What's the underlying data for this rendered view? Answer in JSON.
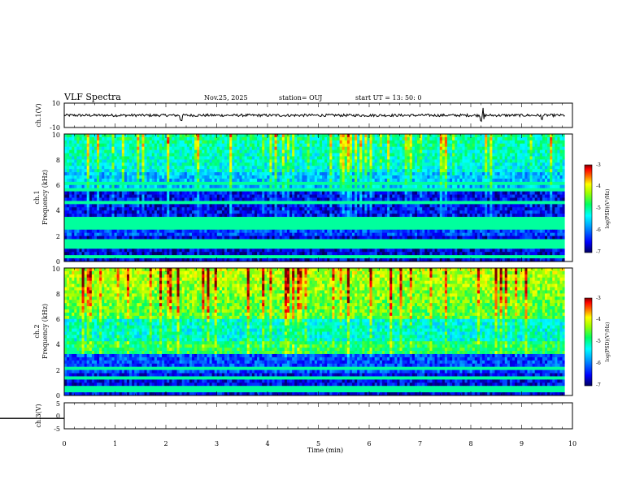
{
  "header": {
    "title": "VLF Spectra",
    "date": "Nov.25, 2025",
    "station": "station= OUJ",
    "start_ut": "start  UT =   13: 50: 0"
  },
  "colors": {
    "background": "#ffffff",
    "axis": "#000000",
    "colormap": [
      "#000080",
      "#0000ff",
      "#00a0ff",
      "#00ffff",
      "#00ff80",
      "#80ff00",
      "#ffff00",
      "#ff8000",
      "#ff0000",
      "#800000"
    ]
  },
  "chart_data": [
    {
      "type": "line",
      "name": "ch1-waveform",
      "ylabel": "ch.1(V)",
      "ylim": [
        -10,
        10
      ],
      "yticks": [
        "10",
        "-10"
      ],
      "baseline": 0,
      "spikes_min": [
        2.3,
        8.2,
        8.25,
        9.4
      ],
      "xlim": [
        0,
        10
      ]
    },
    {
      "type": "heatmap",
      "name": "ch1-spectrogram",
      "ylabel_line1": "ch.1",
      "ylabel_line2": "Frequency (kHz)",
      "ylim": [
        0,
        10
      ],
      "yticks": [
        "0",
        "2",
        "4",
        "6",
        "8",
        "10"
      ],
      "xlim": [
        0,
        10
      ],
      "data_end_min": 9.85,
      "colorbar": {
        "label": "log(PSD)(V²/Hz)",
        "range": [
          -7,
          -3
        ],
        "ticks": [
          "-3",
          "-4",
          "-5",
          "-6",
          "-7"
        ]
      },
      "bands_khz": [
        0.3,
        1.2,
        1.5,
        2.6,
        3.0,
        3.4,
        4.6,
        5.6,
        6.1
      ]
    },
    {
      "type": "heatmap",
      "name": "ch2-spectrogram",
      "ylabel_line1": "ch.2",
      "ylabel_line2": "Frequency (kHz)",
      "ylim": [
        0,
        10
      ],
      "yticks": [
        "0",
        "2",
        "4",
        "6",
        "8",
        "10"
      ],
      "xlim": [
        0,
        10
      ],
      "data_end_min": 9.85,
      "colorbar": {
        "label": "log(PSD)(V²/Hz)",
        "range": [
          -7,
          -3
        ],
        "ticks": [
          "-3",
          "-4",
          "-5",
          "-6",
          "-7"
        ]
      },
      "bands_khz": [
        0.5,
        1.4,
        2.2,
        3.4,
        3.6,
        4.1
      ]
    },
    {
      "type": "line",
      "name": "ch3-waveform",
      "ylabel": "ch.3(V)",
      "ylim": [
        -5,
        5
      ],
      "yticks": [
        "5",
        "0",
        "-5"
      ],
      "baseline": -1,
      "xlim": [
        0,
        10
      ],
      "xlabel": "Time (min)",
      "xticks": [
        "0",
        "1",
        "2",
        "3",
        "4",
        "5",
        "6",
        "7",
        "8",
        "9",
        "10"
      ]
    }
  ]
}
